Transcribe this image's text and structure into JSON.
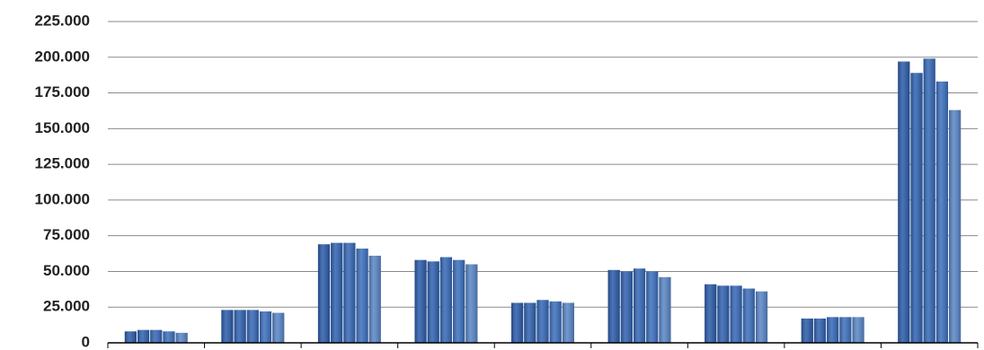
{
  "chart_data": {
    "type": "bar",
    "categories": [
      null,
      null,
      null,
      null,
      null,
      null,
      null,
      null,
      null
    ],
    "series": [
      {
        "color": "#2a5aa8",
        "values": [
          8000,
          23000,
          69000,
          58000,
          28000,
          51000,
          41000,
          17000,
          197000
        ]
      },
      {
        "color": "#2f61b0",
        "values": [
          9000,
          23000,
          70000,
          57000,
          28000,
          50000,
          40000,
          17000,
          189000
        ]
      },
      {
        "color": "#3467b6",
        "values": [
          9000,
          23000,
          70000,
          60000,
          30000,
          52000,
          40000,
          18000,
          199000
        ]
      },
      {
        "color": "#3b6fbd",
        "values": [
          8000,
          22000,
          66000,
          58000,
          29000,
          50000,
          38000,
          18000,
          183000
        ]
      },
      {
        "color": "#5885c6",
        "values": [
          7000,
          21000,
          61000,
          55000,
          28000,
          46000,
          36000,
          18000,
          163000
        ]
      }
    ],
    "ylim": [
      0,
      225000
    ],
    "yticks": [
      0,
      {
        "value": 25000,
        "label": "25.000"
      },
      {
        "value": 50000,
        "label": "50.000"
      },
      {
        "value": 75000,
        "label": "75.000"
      },
      {
        "value": 100000,
        "label": "100.000"
      },
      {
        "value": 125000,
        "label": "125.000"
      },
      {
        "value": 150000,
        "label": "150.000"
      },
      {
        "value": 175000,
        "label": "175.000"
      },
      {
        "value": 200000,
        "label": "200.000"
      },
      {
        "value": 225000,
        "label": "225.000"
      }
    ],
    "grid": true
  }
}
